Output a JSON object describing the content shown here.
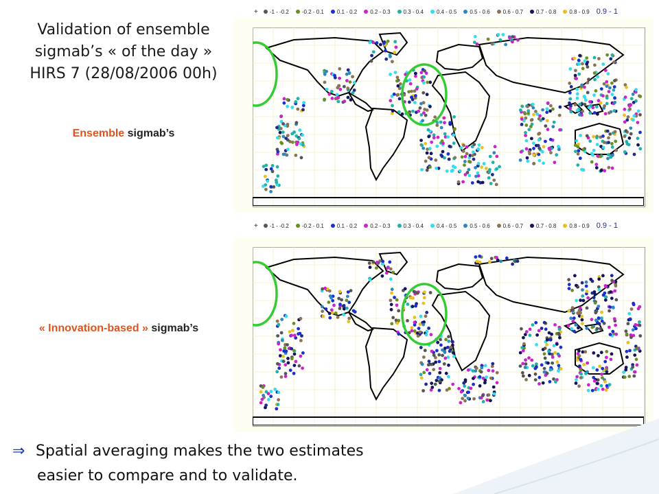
{
  "title": {
    "line1": "Validation of ensemble",
    "line2": "sigmab’s « of the day »",
    "line3": "HIRS 7 (28/08/2006 00h)"
  },
  "panel1": {
    "label_colored": "Ensemble",
    "label_rest": " sigmab’s"
  },
  "panel2": {
    "label_colored": "« Innovation-based »",
    "label_rest": " sigmab’s"
  },
  "legend": [
    {
      "label": "-1 - -0.2",
      "color": "#555555"
    },
    {
      "label": "-0.2 - 0.1",
      "color": "#6b8e23"
    },
    {
      "label": "0.1 - 0.2",
      "color": "#1a2fd0"
    },
    {
      "label": "0.2 - 0.3",
      "color": "#cc22cc"
    },
    {
      "label": "0.3 - 0.4",
      "color": "#20b2aa"
    },
    {
      "label": "0.4 - 0.5",
      "color": "#33ddee"
    },
    {
      "label": "0.5 - 0.6",
      "color": "#2e86c1"
    },
    {
      "label": "0.6 - 0.7",
      "color": "#8b7355"
    },
    {
      "label": "0.7 - 0.8",
      "color": "#14145a"
    },
    {
      "label": "0.8 - 0.9",
      "color": "#e8c020"
    },
    {
      "label": "0.9 - 1",
      "color": "#1d2a8a"
    }
  ],
  "bottom_text": {
    "arrow": "⇒",
    "line1": "Spatial averaging makes the two estimates",
    "line2": "easier to compare and to validate."
  },
  "colors": {
    "highlight_circle": "#33cc33",
    "accent": "#e0531c"
  }
}
